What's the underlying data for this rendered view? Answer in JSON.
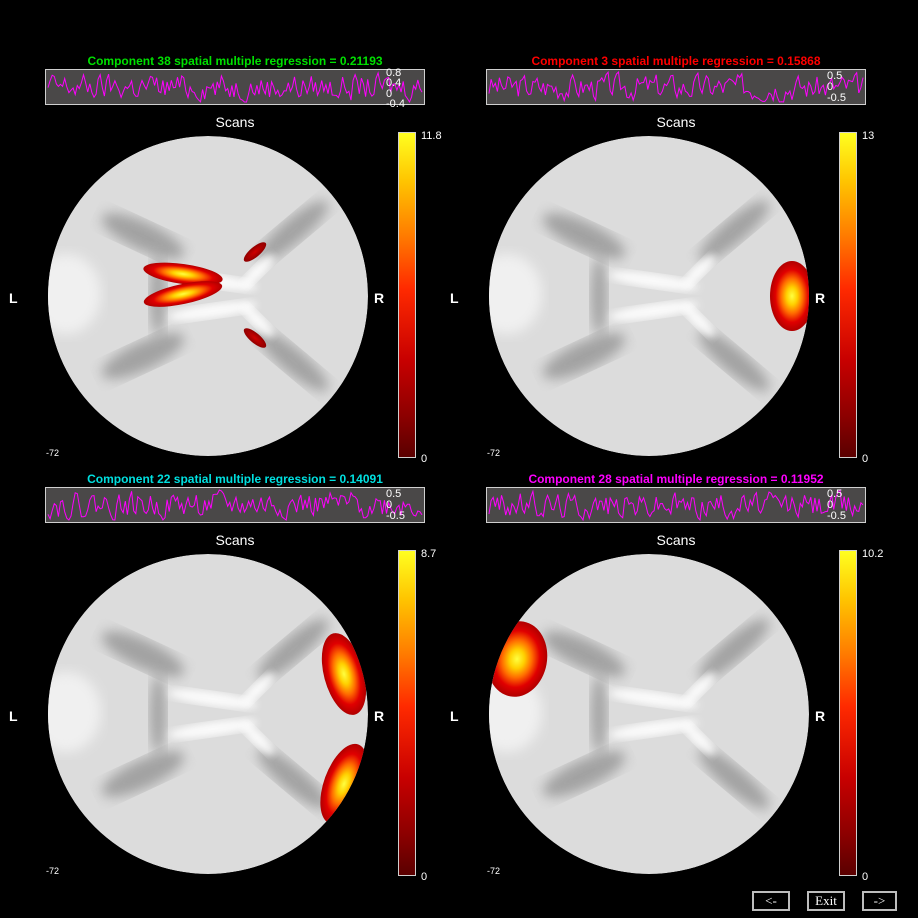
{
  "common": {
    "scans_label": "Scans",
    "left_label": "L",
    "right_label": "R",
    "slice_label": "-72"
  },
  "panels": [
    {
      "title": "Component 38 spatial multiple regression = 0.21193",
      "title_color": "#00e000",
      "ts_ticks": [
        "0.8",
        "0.4",
        "0",
        "-0.4"
      ],
      "ts_range": [
        -0.4,
        0.9
      ],
      "cb_max": "11.8",
      "cb_min": "0",
      "blob_kind": "central",
      "seed": 38
    },
    {
      "title": "Component 3 spatial multiple regression = 0.15868",
      "title_color": "#ff0000",
      "ts_ticks": [
        "0.5",
        "0",
        "-0.5"
      ],
      "ts_range": [
        -0.8,
        0.8
      ],
      "cb_max": "13",
      "cb_min": "0",
      "blob_kind": "right-edge",
      "seed": 3
    },
    {
      "title": "Component 22 spatial multiple regression = 0.14091",
      "title_color": "#00e0e0",
      "ts_ticks": [
        "0.5",
        "0",
        "-0.5"
      ],
      "ts_range": [
        -0.8,
        0.8
      ],
      "cb_max": "8.7",
      "cb_min": "0",
      "blob_kind": "right-pair",
      "seed": 22
    },
    {
      "title": "Component 28 spatial multiple regression = 0.11952",
      "title_color": "#ff00ff",
      "ts_ticks": [
        "0.5",
        "0",
        "-0.5"
      ],
      "ts_range": [
        -0.8,
        0.8
      ],
      "cb_max": "10.2",
      "cb_min": "0",
      "blob_kind": "left-upper",
      "seed": 28
    }
  ],
  "nav": {
    "prev_label": "<-",
    "exit_label": "Exit",
    "next_label": "->"
  },
  "colors": {
    "background": "#000000",
    "timecourse": "#ff00ff",
    "ts_panel": "#4a4848",
    "brain": "#dcdcdc"
  }
}
